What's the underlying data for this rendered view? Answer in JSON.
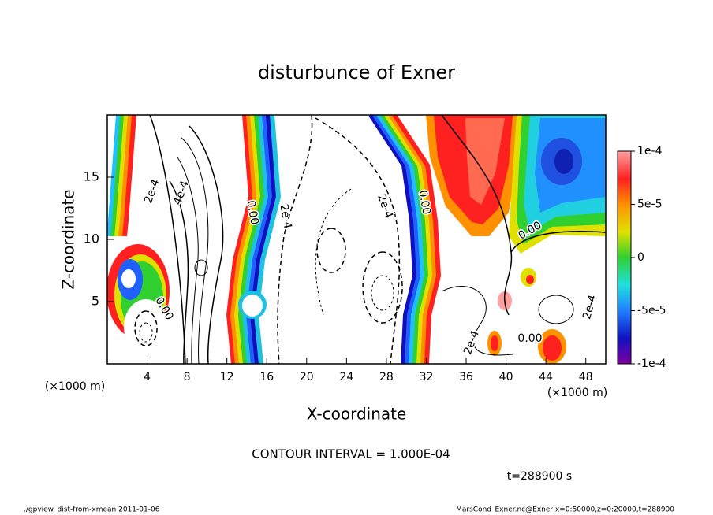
{
  "chart_data": {
    "type": "contour",
    "title": "disturbunce of Exner",
    "x_label": "X-coordinate",
    "y_label": "Z-coordinate",
    "x_unit_label": "(×1000 m)",
    "y_unit_label": "(×1000 m)",
    "xlim": [
      0,
      50
    ],
    "xticks": [
      4,
      8,
      12,
      16,
      20,
      24,
      28,
      32,
      36,
      40,
      44,
      48
    ],
    "ylim": [
      0,
      20
    ],
    "yticks": [
      5,
      10,
      15
    ],
    "colorbar": {
      "lim": [
        -0.0001,
        0.0001
      ],
      "ticks": [
        {
          "value": 0.0001,
          "label": "1e-4"
        },
        {
          "value": 5e-05,
          "label": "5e-5"
        },
        0,
        {
          "value": -5e-05,
          "label": "-5e-5"
        },
        {
          "value": -0.0001,
          "label": "-1e-4"
        }
      ]
    },
    "contour_labels": [
      "2e-4",
      "4e-4",
      "0.00",
      "2e-4",
      "0.00",
      "2e-4",
      "0.00",
      "0.00",
      "2e-4",
      "2e-4",
      "0.00"
    ],
    "contour_interval": "CONTOUR INTERVAL = 1.000E-04",
    "time_label": "t=288900 s",
    "footer_left": "./gpview_dist-from-xmean  2011-01-06",
    "footer_right": "MarsCond_Exner.nc@Exner,x=0:50000,z=0:20000,t=288900"
  }
}
